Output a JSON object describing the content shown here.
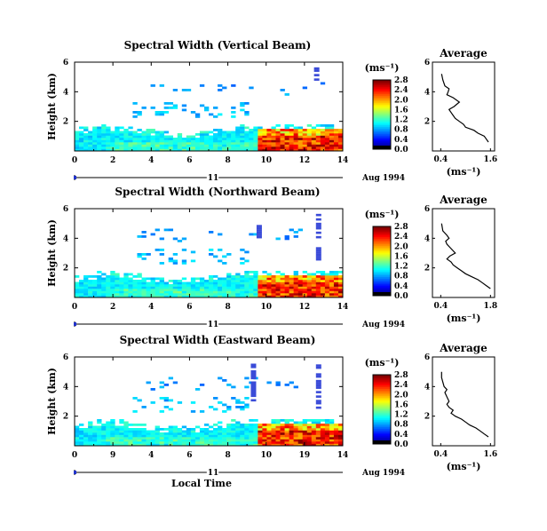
{
  "figure": {
    "panels": [
      {
        "title": "Spectral Width (Vertical Beam)",
        "avg_profile": [
          [
            1.55,
            0.6
          ],
          [
            1.5,
            0.8
          ],
          [
            1.45,
            1.0
          ],
          [
            1.3,
            1.2
          ],
          [
            1.2,
            1.4
          ],
          [
            1.0,
            1.6
          ],
          [
            0.95,
            1.8
          ],
          [
            0.85,
            2.0
          ],
          [
            0.75,
            2.2
          ],
          [
            0.7,
            2.4
          ],
          [
            0.65,
            2.6
          ],
          [
            0.6,
            2.8
          ],
          [
            0.72,
            3.0
          ],
          [
            0.85,
            3.3
          ],
          [
            0.7,
            3.6
          ],
          [
            0.55,
            3.8
          ],
          [
            0.58,
            4.0
          ],
          [
            0.6,
            4.2
          ],
          [
            0.5,
            4.4
          ],
          [
            0.45,
            4.8
          ],
          [
            0.42,
            5.2
          ]
        ],
        "profile_top": 5.2,
        "storm_dark_cols": [
          [
            12.5,
            4.6,
            5.6
          ]
        ]
      },
      {
        "title": "Spectral Width (Northward Beam)",
        "avg_profile": [
          [
            1.6,
            0.6
          ],
          [
            1.5,
            0.8
          ],
          [
            1.4,
            1.0
          ],
          [
            1.3,
            1.2
          ],
          [
            1.15,
            1.4
          ],
          [
            1.0,
            1.6
          ],
          [
            0.9,
            1.8
          ],
          [
            0.8,
            2.0
          ],
          [
            0.7,
            2.2
          ],
          [
            0.65,
            2.4
          ],
          [
            0.55,
            2.6
          ],
          [
            0.62,
            2.8
          ],
          [
            0.75,
            3.0
          ],
          [
            0.65,
            3.3
          ],
          [
            0.55,
            3.6
          ],
          [
            0.52,
            3.8
          ],
          [
            0.6,
            4.0
          ],
          [
            0.55,
            4.2
          ],
          [
            0.45,
            4.5
          ],
          [
            0.42,
            5.0
          ]
        ],
        "profile_top": 5.0,
        "storm_dark_cols": [
          [
            9.5,
            4.0,
            5.0
          ],
          [
            12.6,
            2.5,
            5.6
          ]
        ]
      },
      {
        "title": "Spectral Width (Eastward Beam)",
        "avg_profile": [
          [
            1.55,
            0.6
          ],
          [
            1.45,
            0.8
          ],
          [
            1.35,
            1.0
          ],
          [
            1.25,
            1.2
          ],
          [
            1.1,
            1.4
          ],
          [
            1.0,
            1.6
          ],
          [
            0.9,
            1.8
          ],
          [
            0.75,
            2.0
          ],
          [
            0.65,
            2.2
          ],
          [
            0.7,
            2.4
          ],
          [
            0.6,
            2.6
          ],
          [
            0.55,
            2.8
          ],
          [
            0.6,
            3.0
          ],
          [
            0.55,
            3.3
          ],
          [
            0.5,
            3.6
          ],
          [
            0.55,
            3.8
          ],
          [
            0.48,
            4.0
          ],
          [
            0.45,
            4.3
          ],
          [
            0.42,
            4.6
          ],
          [
            0.42,
            5.0
          ]
        ],
        "profile_top": 5.0,
        "storm_dark_cols": [
          [
            9.2,
            3.0,
            5.6
          ],
          [
            12.6,
            2.5,
            5.6
          ]
        ]
      }
    ],
    "date_label": "11",
    "date_right": "Aug 1994",
    "xlabel": "Local Time",
    "ylabel": "Height (km)",
    "unit_label": "(ms⁻¹)",
    "avg_title": "Average",
    "avg_xlabel": "(ms⁻¹)",
    "x_ticks": [
      "0",
      "2",
      "4",
      "6",
      "8",
      "10",
      "12",
      "14"
    ],
    "x_ticks_low": [
      "0",
      "9",
      "4",
      "6",
      "8",
      "10",
      "19",
      "14"
    ],
    "y_ticks": [
      "2",
      "4",
      "6"
    ],
    "y_ticks_avg": [
      "2",
      "4",
      "6"
    ],
    "avg_x_ticks": [
      "0.4",
      "1.6"
    ],
    "avg_x_ticks_mid": [
      "0.4",
      "1.8"
    ],
    "cbar_ticks": [
      "0.0",
      "0.4",
      "0.8",
      "1.2",
      "1.6",
      "2.0",
      "2.4",
      "2.8"
    ]
  },
  "chart_data": [
    {
      "type": "heatmap",
      "title": "Spectral Width (Vertical Beam)",
      "xlabel": "Local Time",
      "ylabel": "Height (km)",
      "xlim": [
        0,
        14
      ],
      "ylim": [
        0,
        6
      ],
      "colorbar": {
        "label": "(ms⁻¹)",
        "range": [
          0,
          2.8
        ]
      }
    },
    {
      "type": "line",
      "title": "Average",
      "xlabel": "(ms⁻¹)",
      "xlim": [
        0.2,
        1.7
      ],
      "ylim": [
        0,
        6
      ],
      "series": [
        {
          "x": [
            1.55,
            1.5,
            1.45,
            1.3,
            1.2,
            1.0,
            0.95,
            0.85,
            0.75,
            0.7,
            0.65,
            0.6,
            0.72,
            0.85,
            0.7,
            0.55,
            0.58,
            0.6,
            0.5,
            0.45,
            0.42
          ],
          "y": [
            0.6,
            0.8,
            1.0,
            1.2,
            1.4,
            1.6,
            1.8,
            2.0,
            2.2,
            2.4,
            2.6,
            2.8,
            3.0,
            3.3,
            3.6,
            3.8,
            4.0,
            4.2,
            4.4,
            4.8,
            5.2
          ]
        }
      ]
    },
    {
      "type": "heatmap",
      "title": "Spectral Width (Northward Beam)",
      "xlabel": "Local Time",
      "ylabel": "Height (km)",
      "xlim": [
        0,
        14
      ],
      "ylim": [
        0,
        6
      ],
      "colorbar": {
        "label": "(ms⁻¹)",
        "range": [
          0,
          2.8
        ]
      }
    },
    {
      "type": "line",
      "title": "Average",
      "xlabel": "(ms⁻¹)",
      "xlim": [
        0.2,
        1.7
      ],
      "ylim": [
        0,
        6
      ],
      "series": [
        {
          "x": [
            1.6,
            1.5,
            1.4,
            1.3,
            1.15,
            1.0,
            0.9,
            0.8,
            0.7,
            0.65,
            0.55,
            0.62,
            0.75,
            0.65,
            0.55,
            0.52,
            0.6,
            0.55,
            0.45,
            0.42
          ],
          "y": [
            0.6,
            0.8,
            1.0,
            1.2,
            1.4,
            1.6,
            1.8,
            2.0,
            2.2,
            2.4,
            2.6,
            2.8,
            3.0,
            3.3,
            3.6,
            3.8,
            4.0,
            4.2,
            4.5,
            5.0
          ]
        }
      ]
    },
    {
      "type": "heatmap",
      "title": "Spectral Width (Eastward Beam)",
      "xlabel": "Local Time",
      "ylabel": "Height (km)",
      "xlim": [
        0,
        14
      ],
      "ylim": [
        0,
        6
      ],
      "colorbar": {
        "label": "(ms⁻¹)",
        "range": [
          0,
          2.8
        ]
      }
    },
    {
      "type": "line",
      "title": "Average",
      "xlabel": "(ms⁻¹)",
      "xlim": [
        0.2,
        1.7
      ],
      "ylim": [
        0,
        6
      ],
      "series": [
        {
          "x": [
            1.55,
            1.45,
            1.35,
            1.25,
            1.1,
            1.0,
            0.9,
            0.75,
            0.65,
            0.7,
            0.6,
            0.55,
            0.6,
            0.55,
            0.5,
            0.55,
            0.48,
            0.45,
            0.42,
            0.42
          ],
          "y": [
            0.6,
            0.8,
            1.0,
            1.2,
            1.4,
            1.6,
            1.8,
            2.0,
            2.2,
            2.4,
            2.6,
            2.8,
            3.0,
            3.3,
            3.6,
            3.8,
            4.0,
            4.3,
            4.6,
            5.0
          ]
        }
      ]
    }
  ]
}
